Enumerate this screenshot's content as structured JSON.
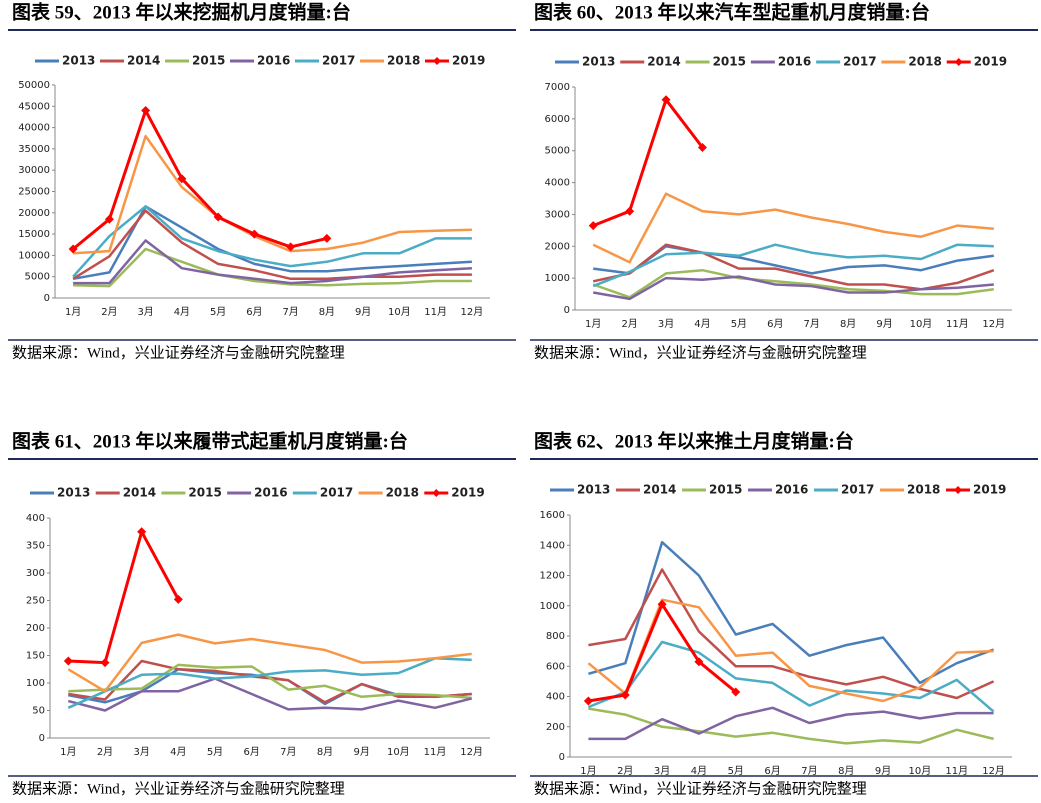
{
  "chart_data": [
    {
      "type": "line",
      "title": "图表 59、2013 年以来挖掘机月度销量:台",
      "source": "数据来源：Wind，兴业证券经济与金融研究院整理",
      "categories": [
        "1月",
        "2月",
        "3月",
        "4月",
        "5月",
        "6月",
        "7月",
        "8月",
        "9月",
        "10月",
        "11月",
        "12月"
      ],
      "ylim": [
        0,
        50000
      ],
      "yticks": [
        0,
        5000,
        10000,
        15000,
        20000,
        25000,
        30000,
        35000,
        40000,
        45000,
        50000
      ],
      "grid": false,
      "series": [
        {
          "name": "2013",
          "color": "#4a7ebb",
          "values": [
            4500,
            6000,
            21500,
            16500,
            11500,
            8000,
            6300,
            6300,
            7000,
            7500,
            8000,
            8500
          ]
        },
        {
          "name": "2014",
          "color": "#c0504d",
          "values": [
            4500,
            9800,
            20500,
            13000,
            8000,
            6500,
            4500,
            4500,
            5000,
            5000,
            5500,
            5500
          ]
        },
        {
          "name": "2015",
          "color": "#9bbb59",
          "values": [
            3000,
            2800,
            11500,
            8500,
            5500,
            4000,
            3200,
            3000,
            3300,
            3500,
            4000,
            4000
          ]
        },
        {
          "name": "2016",
          "color": "#8064a2",
          "values": [
            3500,
            3500,
            13500,
            7000,
            5500,
            4500,
            3500,
            4000,
            5000,
            6000,
            6500,
            7000
          ]
        },
        {
          "name": "2017",
          "color": "#4bacc6",
          "values": [
            5000,
            14500,
            21500,
            14000,
            11000,
            9000,
            7500,
            8500,
            10500,
            10500,
            14000,
            14000
          ]
        },
        {
          "name": "2018",
          "color": "#f79646",
          "values": [
            10500,
            11000,
            38000,
            26000,
            19000,
            14500,
            11000,
            11500,
            13000,
            15500,
            15800,
            16000
          ]
        },
        {
          "name": "2019",
          "color": "#ff0000",
          "marker": "diamond",
          "values": [
            11500,
            18500,
            44000,
            28000,
            19000,
            15000,
            12000,
            14000,
            null,
            null,
            null,
            null
          ]
        }
      ]
    },
    {
      "type": "line",
      "title": "图表 60、2013 年以来汽车型起重机月度销量:台",
      "source": "数据来源：Wind，兴业证券经济与金融研究院整理",
      "categories": [
        "1月",
        "2月",
        "3月",
        "4月",
        "5月",
        "6月",
        "7月",
        "8月",
        "9月",
        "10月",
        "11月",
        "12月"
      ],
      "ylim": [
        0,
        7000
      ],
      "yticks": [
        0,
        1000,
        2000,
        3000,
        4000,
        5000,
        6000,
        7000
      ],
      "grid": false,
      "series": [
        {
          "name": "2013",
          "color": "#4a7ebb",
          "values": [
            1300,
            1150,
            2000,
            1800,
            1650,
            1400,
            1150,
            1350,
            1400,
            1250,
            1550,
            1700
          ]
        },
        {
          "name": "2014",
          "color": "#c0504d",
          "values": [
            900,
            1150,
            2050,
            1800,
            1300,
            1300,
            1050,
            800,
            800,
            650,
            850,
            1250
          ]
        },
        {
          "name": "2015",
          "color": "#9bbb59",
          "values": [
            800,
            400,
            1150,
            1250,
            1000,
            900,
            800,
            650,
            600,
            500,
            500,
            650
          ]
        },
        {
          "name": "2016",
          "color": "#8064a2",
          "values": [
            550,
            350,
            1000,
            950,
            1050,
            800,
            750,
            550,
            550,
            650,
            700,
            800
          ]
        },
        {
          "name": "2017",
          "color": "#4bacc6",
          "values": [
            750,
            1200,
            1750,
            1800,
            1700,
            2050,
            1800,
            1650,
            1700,
            1600,
            2050,
            2000
          ]
        },
        {
          "name": "2018",
          "color": "#f79646",
          "values": [
            2050,
            1500,
            3650,
            3100,
            3000,
            3150,
            2900,
            2700,
            2450,
            2300,
            2650,
            2550
          ]
        },
        {
          "name": "2019",
          "color": "#ff0000",
          "marker": "diamond",
          "values": [
            2650,
            3100,
            6600,
            5100,
            null,
            null,
            null,
            null,
            null,
            null,
            null,
            null
          ]
        }
      ]
    },
    {
      "type": "line",
      "title": "图表 61、2013 年以来履带式起重机月度销量:台",
      "source": "数据来源：Wind，兴业证券经济与金融研究院整理",
      "categories": [
        "1月",
        "2月",
        "3月",
        "4月",
        "5月",
        "6月",
        "7月",
        "8月",
        "9月",
        "10月",
        "11月",
        "12月"
      ],
      "ylim": [
        0,
        400
      ],
      "yticks": [
        0,
        50,
        100,
        150,
        200,
        250,
        300,
        350,
        400
      ],
      "grid": false,
      "series": [
        {
          "name": "2013",
          "color": "#4a7ebb",
          "values": [
            78,
            65,
            85,
            125,
            118,
            115,
            105,
            62,
            98,
            78,
            75,
            80
          ]
        },
        {
          "name": "2014",
          "color": "#c0504d",
          "values": [
            80,
            70,
            140,
            125,
            122,
            112,
            105,
            65,
            98,
            75,
            75,
            80
          ]
        },
        {
          "name": "2015",
          "color": "#9bbb59",
          "values": [
            85,
            88,
            90,
            133,
            128,
            130,
            88,
            95,
            75,
            80,
            78,
            73
          ]
        },
        {
          "name": "2016",
          "color": "#8064a2",
          "values": [
            67,
            50,
            85,
            85,
            108,
            80,
            52,
            55,
            52,
            68,
            55,
            72
          ]
        },
        {
          "name": "2017",
          "color": "#4bacc6",
          "values": [
            55,
            85,
            115,
            117,
            108,
            112,
            121,
            123,
            115,
            118,
            145,
            142
          ]
        },
        {
          "name": "2018",
          "color": "#f79646",
          "values": [
            125,
            85,
            173,
            188,
            172,
            180,
            170,
            160,
            137,
            139,
            145,
            153
          ]
        },
        {
          "name": "2019",
          "color": "#ff0000",
          "marker": "diamond",
          "values": [
            140,
            137,
            375,
            252,
            null,
            null,
            null,
            null,
            null,
            null,
            null,
            null
          ]
        }
      ]
    },
    {
      "type": "line",
      "title": "图表 62、2013 年以来推土月度销量:台",
      "source": "数据来源：Wind，兴业证券经济与金融研究院整理",
      "categories": [
        "1月",
        "2月",
        "3月",
        "4月",
        "5月",
        "6月",
        "7月",
        "8月",
        "9月",
        "10月",
        "11月",
        "12月"
      ],
      "ylim": [
        0,
        1600
      ],
      "yticks": [
        0,
        200,
        400,
        600,
        800,
        1000,
        1200,
        1400,
        1600
      ],
      "grid": false,
      "series": [
        {
          "name": "2013",
          "color": "#4a7ebb",
          "values": [
            550,
            620,
            1420,
            1200,
            810,
            880,
            670,
            740,
            790,
            490,
            620,
            710
          ]
        },
        {
          "name": "2014",
          "color": "#c0504d",
          "values": [
            740,
            780,
            1240,
            830,
            600,
            600,
            530,
            480,
            530,
            450,
            390,
            500
          ]
        },
        {
          "name": "2015",
          "color": "#9bbb59",
          "values": [
            320,
            280,
            200,
            170,
            135,
            160,
            120,
            90,
            110,
            95,
            180,
            120
          ]
        },
        {
          "name": "2016",
          "color": "#8064a2",
          "values": [
            120,
            120,
            250,
            155,
            270,
            325,
            225,
            280,
            300,
            255,
            290,
            290
          ]
        },
        {
          "name": "2017",
          "color": "#4bacc6",
          "values": [
            330,
            430,
            760,
            690,
            520,
            490,
            340,
            440,
            420,
            390,
            510,
            300
          ]
        },
        {
          "name": "2018",
          "color": "#f79646",
          "values": [
            620,
            420,
            1040,
            990,
            670,
            690,
            470,
            420,
            370,
            460,
            690,
            700
          ]
        },
        {
          "name": "2019",
          "color": "#ff0000",
          "marker": "diamond",
          "values": [
            370,
            410,
            1010,
            630,
            430,
            null,
            null,
            null,
            null,
            null,
            null,
            null
          ]
        }
      ]
    }
  ]
}
